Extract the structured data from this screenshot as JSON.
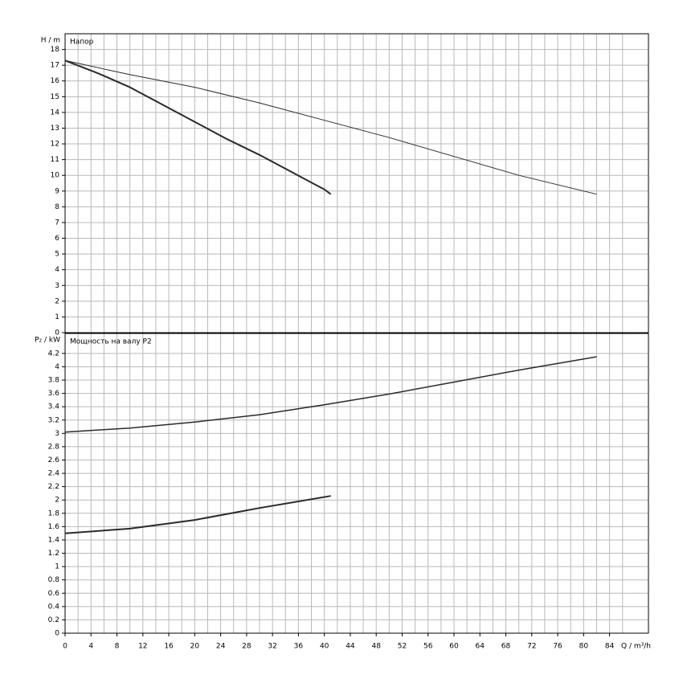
{
  "chart_data": [
    {
      "type": "line",
      "ylabel": "H / m",
      "title": "Напор",
      "xlim": [
        0,
        90
      ],
      "xticks": [
        0,
        4,
        8,
        12,
        16,
        20,
        24,
        28,
        32,
        36,
        40,
        44,
        48,
        52,
        56,
        60,
        64,
        68,
        72,
        76,
        80,
        84
      ],
      "ylim": [
        0,
        19
      ],
      "yticks": [
        0,
        1,
        2,
        3,
        4,
        5,
        6,
        7,
        8,
        9,
        10,
        11,
        12,
        13,
        14,
        15,
        16,
        17,
        18
      ],
      "grid": true,
      "series": [
        {
          "color": "#2a2a2a",
          "width": 1,
          "x": [
            0,
            10,
            20,
            30,
            40,
            50,
            60,
            70,
            82
          ],
          "values": [
            17.3,
            16.4,
            15.6,
            14.6,
            13.5,
            12.4,
            11.2,
            10.0,
            8.8
          ]
        },
        {
          "color": "#2a2a2a",
          "width": 2,
          "x": [
            0,
            5,
            10,
            15,
            20,
            25,
            30,
            35,
            40,
            41
          ],
          "values": [
            17.3,
            16.5,
            15.6,
            14.5,
            13.4,
            12.3,
            11.3,
            10.2,
            9.1,
            8.8
          ]
        }
      ]
    },
    {
      "type": "line",
      "ylabel": "P₂ / kW",
      "title": "Мощность на валу P2",
      "xlabel": "Q / m³/h",
      "xlim": [
        0,
        90
      ],
      "xticks": [
        0,
        4,
        8,
        12,
        16,
        20,
        24,
        28,
        32,
        36,
        40,
        44,
        48,
        52,
        56,
        60,
        64,
        68,
        72,
        76,
        80,
        84
      ],
      "ylim": [
        0,
        4.5
      ],
      "yticks": [
        0,
        0.2,
        0.4,
        0.6,
        0.8,
        1,
        1.2,
        1.4,
        1.6,
        1.8,
        2,
        2.2,
        2.4,
        2.6,
        2.8,
        3,
        3.2,
        3.4,
        3.6,
        3.8,
        4,
        4.2
      ],
      "grid": true,
      "series": [
        {
          "color": "#2a2a2a",
          "width": 1.5,
          "x": [
            0,
            10,
            20,
            30,
            40,
            50,
            60,
            70,
            82
          ],
          "values": [
            3.02,
            3.08,
            3.17,
            3.28,
            3.43,
            3.59,
            3.77,
            3.95,
            4.15
          ]
        },
        {
          "color": "#2a2a2a",
          "width": 2,
          "x": [
            0,
            10,
            20,
            30,
            41
          ],
          "values": [
            1.5,
            1.57,
            1.7,
            1.88,
            2.06
          ]
        }
      ]
    }
  ]
}
